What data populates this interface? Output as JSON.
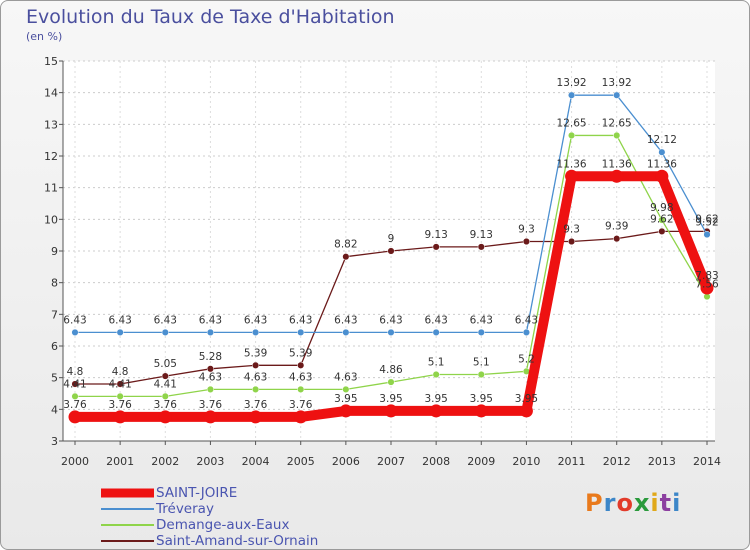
{
  "title": "Evolution du Taux de Taxe d'Habitation",
  "subtitle": "(en %)",
  "logo": {
    "text": "Proxiti",
    "colors": [
      "#e97a1c",
      "#3c86c8",
      "#e23b2a",
      "#2a9a3c",
      "#e0a81a",
      "#8c3fa0",
      "#3c86c8"
    ]
  },
  "chart_data": {
    "type": "line",
    "title": "Evolution du Taux de Taxe d'Habitation",
    "ylabel": "(en %)",
    "xlabel": "",
    "categories": [
      "2000",
      "2001",
      "2002",
      "2003",
      "2004",
      "2005",
      "2006",
      "2007",
      "2008",
      "2009",
      "2010",
      "2011",
      "2012",
      "2013",
      "2014"
    ],
    "ylim": [
      3,
      15
    ],
    "yticks": [
      "3",
      "4",
      "5",
      "6",
      "7",
      "8",
      "9",
      "10",
      "11",
      "12",
      "13",
      "14",
      "15"
    ],
    "grid": true,
    "legend_position": "bottom-left",
    "series": [
      {
        "name": "Saint-Amand-sur-Ornain",
        "color": "#6b1a1a",
        "values": [
          4.8,
          4.8,
          5.05,
          5.28,
          5.39,
          5.39,
          8.82,
          9,
          9.13,
          9.13,
          9.3,
          9.3,
          9.39,
          9.62,
          9.62
        ],
        "labels": [
          "4.8",
          "4.8",
          "5.05",
          "5.28",
          "5.39",
          "5.39",
          "8.82",
          "9",
          "9.13",
          "9.13",
          "9.3",
          "9.3",
          "9.39",
          "9.62",
          "9.62"
        ]
      },
      {
        "name": "Demange-aux-Eaux",
        "color": "#8fd44a",
        "values": [
          4.41,
          4.41,
          4.41,
          4.63,
          4.63,
          4.63,
          4.63,
          4.86,
          5.1,
          5.1,
          5.2,
          12.65,
          12.65,
          9.98,
          7.56
        ],
        "labels": [
          "4.41",
          "4.41",
          "4.41",
          "4.63",
          "4.63",
          "4.63",
          "4.63",
          "4.86",
          "5.1",
          "5.1",
          "5.2",
          "12.65",
          "12.65",
          "9.98",
          "7.56"
        ]
      },
      {
        "name": "Tréveray",
        "color": "#4b8fd0",
        "values": [
          6.43,
          6.43,
          6.43,
          6.43,
          6.43,
          6.43,
          6.43,
          6.43,
          6.43,
          6.43,
          6.43,
          13.92,
          13.92,
          12.12,
          9.52
        ],
        "labels": [
          "6.43",
          "6.43",
          "6.43",
          "6.43",
          "6.43",
          "6.43",
          "6.43",
          "6.43",
          "6.43",
          "6.43",
          "6.43",
          "13.92",
          "13.92",
          "12.12",
          "9.52"
        ]
      },
      {
        "name": "SAINT-JOIRE",
        "color": "#ee1111",
        "values": [
          3.76,
          3.76,
          3.76,
          3.76,
          3.76,
          3.76,
          3.95,
          3.95,
          3.95,
          3.95,
          3.95,
          11.36,
          11.36,
          11.36,
          7.83
        ],
        "labels": [
          "3.76",
          "3.76",
          "3.76",
          "3.76",
          "3.76",
          "3.76",
          "3.95",
          "3.95",
          "3.95",
          "3.95",
          "3.95",
          "11.36",
          "11.36",
          "11.36",
          "7.83"
        ]
      }
    ]
  },
  "legend": [
    {
      "label": "SAINT-JOIRE",
      "color": "#ee1111"
    },
    {
      "label": "Tréveray",
      "color": "#4b8fd0"
    },
    {
      "label": "Demange-aux-Eaux",
      "color": "#8fd44a"
    },
    {
      "label": "Saint-Amand-sur-Ornain",
      "color": "#6b1a1a"
    }
  ]
}
